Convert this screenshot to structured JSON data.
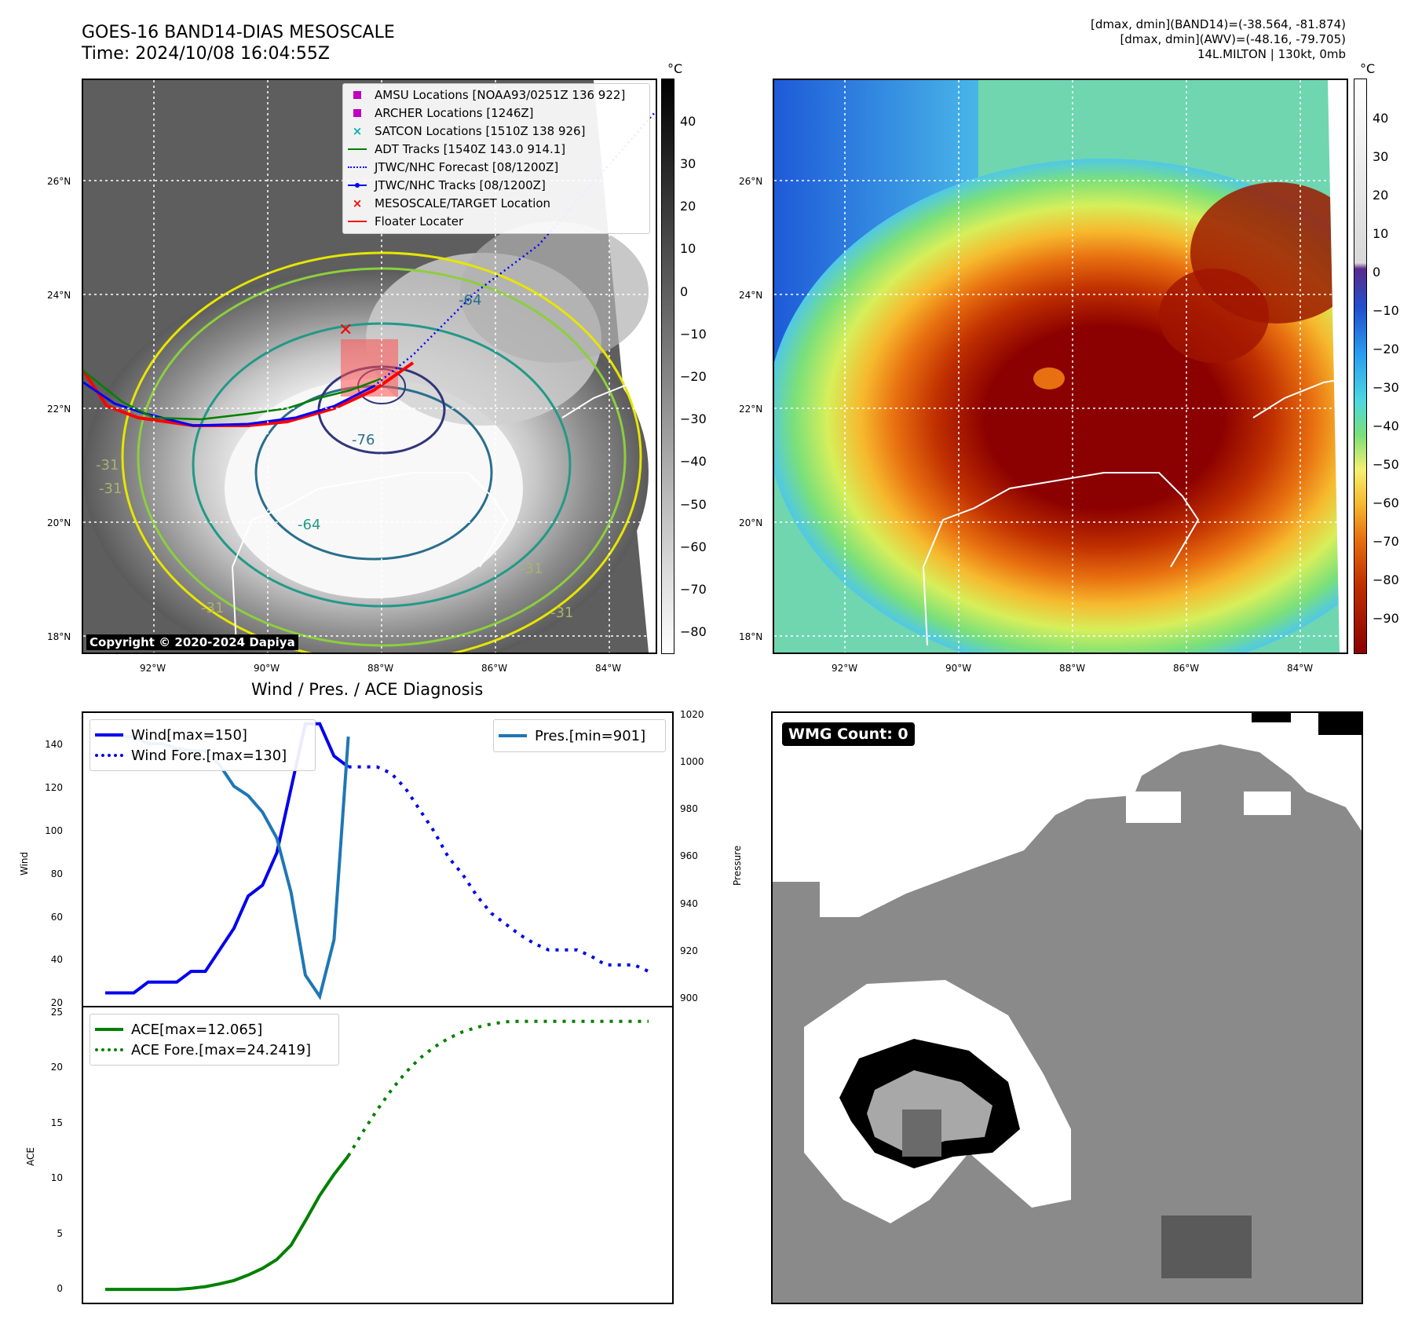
{
  "header": {
    "title_line1": "GOES-16 BAND14-DIAS MESOSCALE",
    "title_line2": "Time: 2024/10/08 16:04:55Z",
    "info_line1": "[dmax, dmin](BAND14)=(-38.564, -81.874)",
    "info_line2": "[dmax, dmin](AWV)=(-48.16, -79.705)",
    "info_line3": "14L.MILTON | 130kt, 0mb"
  },
  "map_axes": {
    "lon_ticks": [
      "92°W",
      "90°W",
      "88°W",
      "86°W",
      "84°W"
    ],
    "lat_ticks": [
      "26°N",
      "24°N",
      "22°N",
      "20°N",
      "18°N"
    ]
  },
  "left_map": {
    "legend": [
      {
        "label": "AMSU Locations [NOAA93/0251Z 136 922]",
        "symbol": "square",
        "color": "#c000c0"
      },
      {
        "label": "ARCHER Locations [1246Z]",
        "symbol": "square",
        "color": "#c000c0"
      },
      {
        "label": "SATCON Locations [1510Z 138 926]",
        "symbol": "x",
        "color": "#00b0b0"
      },
      {
        "label": "ADT Tracks [1540Z 143.0 914.1]",
        "symbol": "line",
        "color": "#008000"
      },
      {
        "label": "JTWC/NHC Forecast [08/1200Z]",
        "symbol": "dotted",
        "color": "#0000ff"
      },
      {
        "label": "JTWC/NHC Tracks [08/1200Z]",
        "symbol": "line-dot",
        "color": "#0000ff"
      },
      {
        "label": "MESOSCALE/TARGET Location",
        "symbol": "x",
        "color": "#ff0000"
      },
      {
        "label": "Floater Locater",
        "symbol": "line",
        "color": "#ff0000"
      }
    ],
    "contour_labels": [
      "-64",
      "-76",
      "-64",
      "-31",
      "-31",
      "-31",
      "-31",
      "-31"
    ],
    "copyright": "Copyright © 2020-2024 Dapiya",
    "colorbar_unit": "°C",
    "colorbar_ticks": [
      "40",
      "30",
      "20",
      "10",
      "0",
      "−10",
      "−20",
      "−30",
      "−40",
      "−50",
      "−60",
      "−70",
      "−80"
    ]
  },
  "right_map": {
    "colorbar_unit": "°C",
    "colorbar_ticks": [
      "40",
      "30",
      "20",
      "10",
      "0",
      "−10",
      "−20",
      "−30",
      "−40",
      "−50",
      "−60",
      "−70",
      "−80",
      "−90"
    ]
  },
  "diagnosis": {
    "title": "Wind / Pres. / ACE Diagnosis",
    "wind_ylabel": "Wind",
    "pressure_ylabel": "Pressure",
    "ace_ylabel": "ACE",
    "wind_ticks": [
      "140",
      "120",
      "100",
      "80",
      "60",
      "40",
      "20"
    ],
    "pressure_ticks": [
      "1020",
      "1000",
      "980",
      "960",
      "940",
      "920",
      "900"
    ],
    "ace_ticks": [
      "25",
      "20",
      "15",
      "10",
      "5",
      "0"
    ],
    "legend_wind": "Wind[max=150]",
    "legend_wind_fore": "Wind Fore.[max=130]",
    "legend_pres": "Pres.[min=901]",
    "legend_ace": "ACE[max=12.065]",
    "legend_ace_fore": "ACE Fore.[max=24.2419]"
  },
  "wmg": {
    "label": "WMG Count: 0"
  },
  "colors": {
    "wind": "#0000ee",
    "pressure": "#1f77b4",
    "ace": "#008000"
  },
  "chart_data": [
    {
      "type": "line",
      "title": "Wind / Pres. / ACE Diagnosis",
      "ylabel": "Wind",
      "ylim": [
        19,
        155
      ],
      "x": [
        0,
        1,
        2,
        3,
        4,
        5,
        6,
        7,
        8,
        9,
        10,
        11,
        12,
        13,
        14,
        15,
        16,
        17,
        18,
        19,
        20,
        21,
        22,
        23,
        24,
        25,
        26,
        27,
        28,
        29,
        30,
        31,
        32,
        33,
        34,
        35,
        36,
        37,
        38
      ],
      "series": [
        {
          "name": "Wind[max=150]",
          "style": "solid",
          "color": "#0000ee",
          "x": [
            0,
            1,
            2,
            3,
            4,
            5,
            6,
            7,
            8,
            9,
            10,
            11,
            12,
            13,
            14,
            15,
            16,
            17
          ],
          "values": [
            25,
            25,
            25,
            30,
            30,
            30,
            35,
            35,
            45,
            55,
            70,
            75,
            90,
            120,
            150,
            150,
            135,
            130
          ]
        },
        {
          "name": "Wind Fore.[max=130]",
          "style": "dotted",
          "color": "#0000ee",
          "x": [
            17,
            18,
            19,
            20,
            21,
            22,
            23,
            24,
            25,
            26,
            27,
            28,
            29,
            30,
            31,
            32,
            33,
            34,
            35,
            36,
            37,
            38
          ],
          "values": [
            130,
            130,
            130,
            127,
            120,
            110,
            100,
            88,
            80,
            70,
            62,
            57,
            52,
            48,
            45,
            45,
            45,
            42,
            38,
            38,
            38,
            35
          ]
        }
      ]
    },
    {
      "type": "line",
      "ylabel": "Pressure",
      "ylim": [
        897,
        1021
      ],
      "series": [
        {
          "name": "Pres.[min=901]",
          "style": "solid",
          "color": "#1f77b4",
          "x": [
            0,
            1,
            2,
            3,
            4,
            5,
            6,
            7,
            8,
            9,
            10,
            11,
            12,
            13,
            14,
            15,
            16,
            17
          ],
          "values": [
            1011,
            1011,
            1011,
            1008,
            1008,
            1006,
            1005,
            1005,
            999,
            990,
            986,
            979,
            968,
            945,
            910,
            901,
            925,
            1011
          ]
        }
      ]
    },
    {
      "type": "line",
      "ylabel": "ACE",
      "ylim": [
        -1.2,
        25.5
      ],
      "series": [
        {
          "name": "ACE[max=12.065]",
          "style": "solid",
          "color": "#008000",
          "x": [
            0,
            1,
            2,
            3,
            4,
            5,
            6,
            7,
            8,
            9,
            10,
            11,
            12,
            13,
            14,
            15,
            16,
            17
          ],
          "values": [
            0,
            0,
            0,
            0,
            0,
            0,
            0.1,
            0.25,
            0.5,
            0.8,
            1.3,
            1.9,
            2.7,
            4.0,
            6.2,
            8.5,
            10.4,
            12.065
          ]
        },
        {
          "name": "ACE Fore.[max=24.2419]",
          "style": "dotted",
          "color": "#008000",
          "x": [
            17,
            18,
            19,
            20,
            21,
            22,
            23,
            24,
            25,
            26,
            27,
            28,
            29,
            30,
            31,
            32,
            33,
            34,
            35,
            36,
            37,
            38
          ],
          "values": [
            12.065,
            14.2,
            16.2,
            18.0,
            19.6,
            20.9,
            21.9,
            22.7,
            23.3,
            23.7,
            24.0,
            24.2,
            24.24,
            24.24,
            24.24,
            24.24,
            24.24,
            24.24,
            24.24,
            24.24,
            24.24,
            24.24
          ]
        }
      ]
    }
  ]
}
